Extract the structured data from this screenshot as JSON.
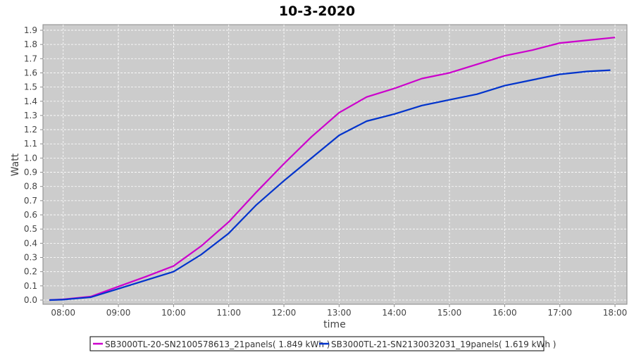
{
  "chart_data": {
    "type": "line",
    "title": "10-3-2020",
    "xlabel": "time",
    "ylabel": "Watt",
    "xlim": [
      "07:38",
      "18:13"
    ],
    "ylim": [
      0,
      1.95
    ],
    "grid": true,
    "legend_placement": "bottom",
    "x_ticks": [
      "08:00",
      "09:00",
      "10:00",
      "11:00",
      "12:00",
      "13:00",
      "14:00",
      "15:00",
      "16:00",
      "17:00",
      "18:00"
    ],
    "y_ticks": [
      "0.0",
      "0.1",
      "0.2",
      "0.3",
      "0.4",
      "0.5",
      "0.6",
      "0.7",
      "0.8",
      "0.9",
      "1.0",
      "1.1",
      "1.2",
      "1.3",
      "1.4",
      "1.5",
      "1.6",
      "1.7",
      "1.8",
      "1.9"
    ],
    "colors": {
      "plot_background": "#cccccc",
      "grid": "#ffffff"
    },
    "series": [
      {
        "name": "SB3000TL-20-SN2100578613_21panels( 1.849 kWh )",
        "color": "#cc00cc",
        "x": [
          "07:45",
          "08:00",
          "08:30",
          "09:00",
          "09:30",
          "10:00",
          "10:30",
          "11:00",
          "11:30",
          "12:00",
          "12:30",
          "13:00",
          "13:30",
          "14:00",
          "14:30",
          "15:00",
          "15:30",
          "16:00",
          "16:30",
          "17:00",
          "17:30",
          "18:00"
        ],
        "y": [
          0,
          0.005,
          0.025,
          0.095,
          0.165,
          0.24,
          0.38,
          0.55,
          0.76,
          0.96,
          1.15,
          1.32,
          1.43,
          1.49,
          1.56,
          1.6,
          1.66,
          1.72,
          1.76,
          1.81,
          1.83,
          1.849
        ]
      },
      {
        "name": "SB3000TL-21-SN2130032031_19panels( 1.619 kWh )",
        "color": "#0033cc",
        "x": [
          "07:45",
          "08:00",
          "08:30",
          "09:00",
          "09:30",
          "10:00",
          "10:30",
          "11:00",
          "11:30",
          "12:00",
          "12:30",
          "13:00",
          "13:30",
          "14:00",
          "14:30",
          "15:00",
          "15:30",
          "16:00",
          "16:30",
          "17:00",
          "17:30",
          "17:55"
        ],
        "y": [
          0,
          0.003,
          0.02,
          0.08,
          0.14,
          0.2,
          0.32,
          0.47,
          0.67,
          0.84,
          1.0,
          1.16,
          1.26,
          1.31,
          1.37,
          1.41,
          1.45,
          1.51,
          1.55,
          1.59,
          1.61,
          1.619
        ]
      }
    ]
  }
}
